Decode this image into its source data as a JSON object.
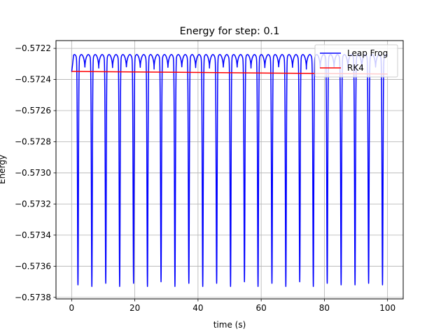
{
  "chart_data": {
    "type": "line",
    "title": "Energy for step: 0.1",
    "xlabel": "time (s)",
    "ylabel": "Energy",
    "xlim": [
      -4.95,
      104.95
    ],
    "ylim": [
      -0.57381,
      -0.57215
    ],
    "x_ticks": [
      0,
      20,
      40,
      60,
      80,
      100
    ],
    "x_tick_labels": [
      "0",
      "20",
      "40",
      "60",
      "80",
      "100"
    ],
    "y_ticks": [
      -0.5722,
      -0.5724,
      -0.5726,
      -0.5728,
      -0.573,
      -0.5732,
      -0.5734,
      -0.5736,
      -0.5738
    ],
    "y_tick_labels": [
      "−0.5722",
      "−0.5724",
      "−0.5726",
      "−0.5728",
      "−0.5730",
      "−0.5732",
      "−0.5734",
      "−0.5736",
      "−0.5738"
    ],
    "grid": true,
    "legend_position": "upper-right",
    "series": [
      {
        "name": "Leap Frog",
        "color": "#0000ff",
        "baseline": -0.57235,
        "peak": -0.57224,
        "dip_times": [
          2.0,
          6.4,
          10.8,
          15.2,
          19.6,
          24.0,
          28.3,
          32.7,
          37.1,
          41.5,
          45.9,
          50.3,
          54.7,
          59.0,
          63.4,
          67.8,
          72.2,
          76.5,
          80.9,
          85.3,
          89.7,
          94.0,
          98.4
        ],
        "dip_values": [
          -0.57372,
          -0.57373,
          -0.57371,
          -0.57373,
          -0.57371,
          -0.57373,
          -0.5737,
          -0.57373,
          -0.57371,
          -0.57373,
          -0.57371,
          -0.57373,
          -0.5737,
          -0.57373,
          -0.57371,
          -0.57373,
          -0.5737,
          -0.57373,
          -0.57371,
          -0.57372,
          -0.57372,
          -0.57371,
          -0.57372
        ]
      },
      {
        "name": "RK4",
        "color": "#ff0000",
        "x": [
          0,
          100
        ],
        "values": [
          -0.572348,
          -0.572365
        ]
      }
    ]
  }
}
